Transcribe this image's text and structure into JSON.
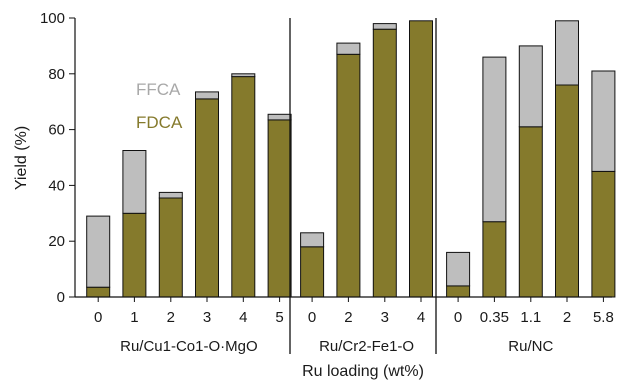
{
  "chart_data": {
    "type": "bar",
    "stacked": true,
    "ylabel": "Yield (%)",
    "xlabel": "Ru loading (wt%)",
    "ylim": [
      0,
      100
    ],
    "yticks": [
      "0",
      "20",
      "40",
      "60",
      "80",
      "100"
    ],
    "grid": false,
    "legend_position": "inside upper-left",
    "series": [
      {
        "name": "FDCA",
        "color": "#857a2c"
      },
      {
        "name": "FFCA",
        "color": "#bebebe"
      }
    ],
    "groups": [
      {
        "label": "Ru/Cu1-Co1-O·MgO",
        "categories": [
          "0",
          "1",
          "2",
          "3",
          "4",
          "5"
        ],
        "FDCA": [
          3.5,
          30,
          35.5,
          71,
          79,
          63.5
        ],
        "FFCA": [
          25.5,
          22.5,
          2,
          2.5,
          1,
          2
        ]
      },
      {
        "label": "Ru/Cr2-Fe1-O",
        "categories": [
          "0",
          "2",
          "3",
          "4"
        ],
        "FDCA": [
          18,
          87,
          96,
          99
        ],
        "FFCA": [
          5,
          4,
          2,
          0
        ]
      },
      {
        "label": "Ru/NC",
        "categories": [
          "0",
          "0.35",
          "1.1",
          "2",
          "5.8"
        ],
        "FDCA": [
          4,
          27,
          61,
          76,
          45
        ],
        "FFCA": [
          12,
          59,
          29,
          23,
          36
        ]
      }
    ]
  }
}
